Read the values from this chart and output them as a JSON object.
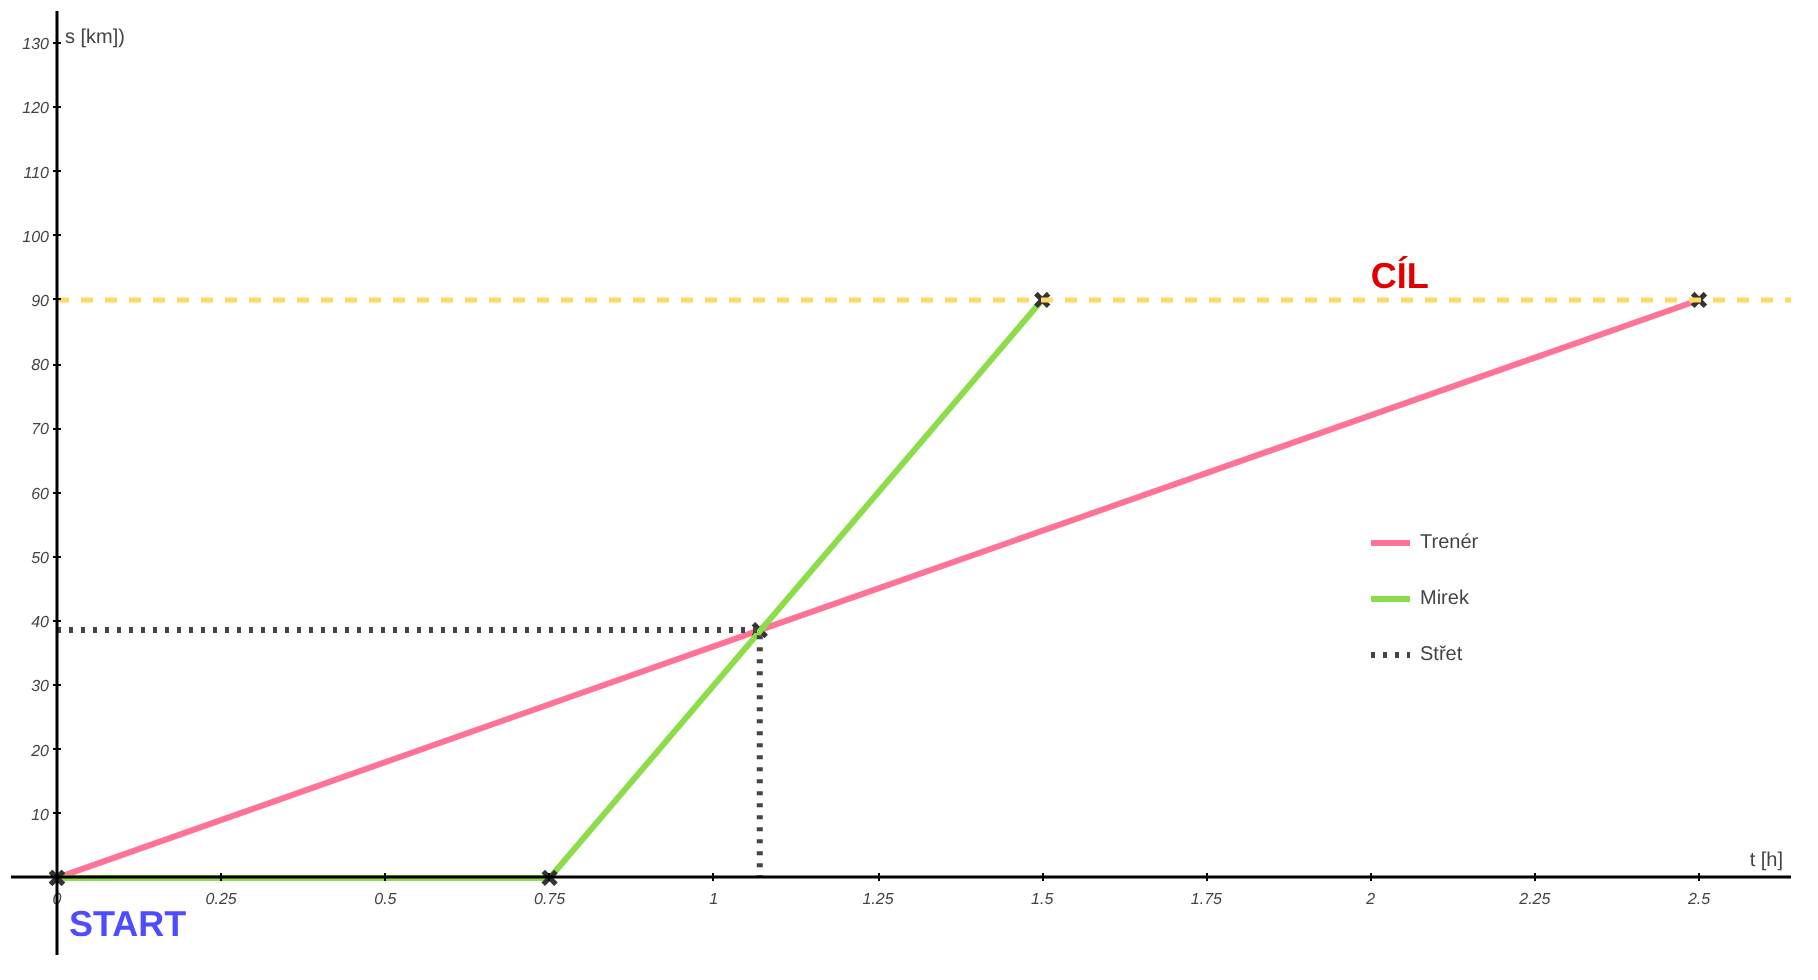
{
  "chart_data": {
    "type": "line",
    "xlabel": "t [h]",
    "ylabel": "s [km])",
    "xlim": [
      -0.07,
      2.64
    ],
    "ylim": [
      -12,
      135
    ],
    "xticks": [
      0,
      0.25,
      0.5,
      0.75,
      1,
      1.25,
      1.5,
      1.75,
      2,
      2.25,
      2.5
    ],
    "yticks": [
      10,
      20,
      30,
      40,
      50,
      60,
      70,
      80,
      90,
      100,
      110,
      120,
      130
    ],
    "grid": false,
    "legend": "right",
    "marker": "cross",
    "series": [
      {
        "name": "Trenér",
        "color": "#ff7396",
        "x": [
          0,
          1.07,
          2.5
        ],
        "values": [
          0,
          38.6,
          90
        ]
      },
      {
        "name": "Mirek",
        "color": "#8ddc4a",
        "x": [
          0,
          0.75,
          1.5
        ],
        "values": [
          0,
          0,
          90
        ]
      },
      {
        "name": "Střet",
        "color": "#444444",
        "x": [
          0,
          1.07,
          1.07
        ],
        "values": [
          38.6,
          38.6,
          0
        ],
        "line_style": "dotted",
        "marker": "none"
      }
    ],
    "ref_lines": [
      {
        "axis": "y",
        "value": 90,
        "label": "CÍL",
        "color": "#ffd966",
        "line_style": "dashed"
      }
    ],
    "annotations": [
      {
        "text": "START",
        "x": 0,
        "y": 0
      }
    ]
  }
}
